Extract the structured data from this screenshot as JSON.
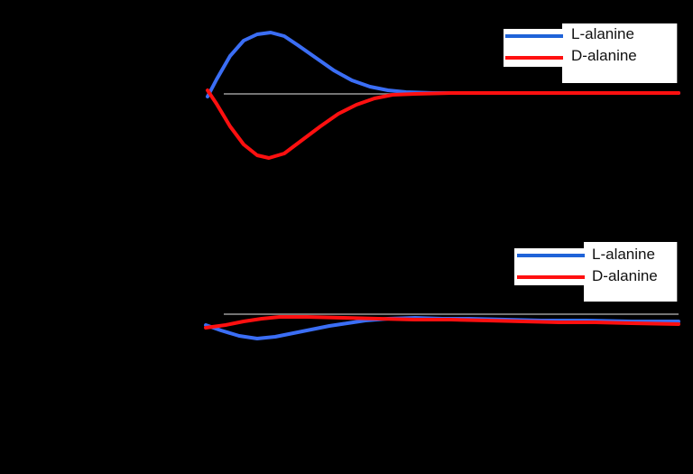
{
  "chart_data": [
    {
      "type": "line",
      "title": "",
      "xlabel": "",
      "ylabel": "",
      "grid": false,
      "legend_position": "upper right",
      "baseline": 0,
      "series": [
        {
          "name": "L-alanine",
          "color": "#3b6ef5",
          "points": [
            [
              230,
              107
            ],
            [
              240,
              88
            ],
            [
              255,
              62
            ],
            [
              270,
              45
            ],
            [
              285,
              38
            ],
            [
              300,
              36
            ],
            [
              315,
              40
            ],
            [
              330,
              50
            ],
            [
              350,
              64
            ],
            [
              370,
              78
            ],
            [
              390,
              89
            ],
            [
              410,
              96
            ],
            [
              430,
              100
            ],
            [
              450,
              102
            ],
            [
              480,
              103
            ],
            [
              550,
              103
            ],
            [
              650,
              103
            ],
            [
              752,
              103
            ]
          ]
        },
        {
          "name": "D-alanine",
          "color": "#ff1010",
          "points": [
            [
              230,
              100
            ],
            [
              240,
              115
            ],
            [
              255,
              140
            ],
            [
              270,
              160
            ],
            [
              285,
              172
            ],
            [
              298,
              175
            ],
            [
              315,
              170
            ],
            [
              335,
              155
            ],
            [
              355,
              140
            ],
            [
              375,
              126
            ],
            [
              395,
              116
            ],
            [
              415,
              109
            ],
            [
              435,
              105
            ],
            [
              460,
              104
            ],
            [
              500,
              103
            ],
            [
              600,
              103
            ],
            [
              752,
              103
            ]
          ]
        }
      ]
    },
    {
      "type": "line",
      "title": "",
      "xlabel": "",
      "ylabel": "",
      "grid": false,
      "legend_position": "upper right",
      "baseline": 0,
      "series": [
        {
          "name": "L-alanine",
          "color": "#3b6ef5",
          "points": [
            [
              228,
              360
            ],
            [
              245,
              366
            ],
            [
              265,
              372
            ],
            [
              285,
              375
            ],
            [
              305,
              373
            ],
            [
              325,
              369
            ],
            [
              345,
              365
            ],
            [
              365,
              361
            ],
            [
              385,
              358
            ],
            [
              405,
              355
            ],
            [
              430,
              353
            ],
            [
              460,
              352
            ],
            [
              490,
              353
            ],
            [
              520,
              353
            ],
            [
              560,
              354
            ],
            [
              600,
              355
            ],
            [
              650,
              355
            ],
            [
              700,
              356
            ],
            [
              752,
              356
            ]
          ]
        },
        {
          "name": "D-alanine",
          "color": "#ff1010",
          "points": [
            [
              228,
              363
            ],
            [
              250,
              360
            ],
            [
              270,
              356
            ],
            [
              290,
              353
            ],
            [
              310,
              351
            ],
            [
              340,
              351
            ],
            [
              380,
              352
            ],
            [
              420,
              353
            ],
            [
              460,
              354
            ],
            [
              500,
              354
            ],
            [
              540,
              355
            ],
            [
              580,
              356
            ],
            [
              620,
              357
            ],
            [
              660,
              357
            ],
            [
              700,
              358
            ],
            [
              752,
              359
            ]
          ]
        }
      ]
    }
  ],
  "legend_top": {
    "items": [
      {
        "label": "L-alanine",
        "color": "#1f63d8"
      },
      {
        "label": "D-alanine",
        "color": "#ff1010"
      }
    ]
  },
  "legend_bottom": {
    "items": [
      {
        "label": "L-alanine",
        "color": "#1f63d8"
      },
      {
        "label": "D-alanine",
        "color": "#ff1010"
      }
    ]
  }
}
